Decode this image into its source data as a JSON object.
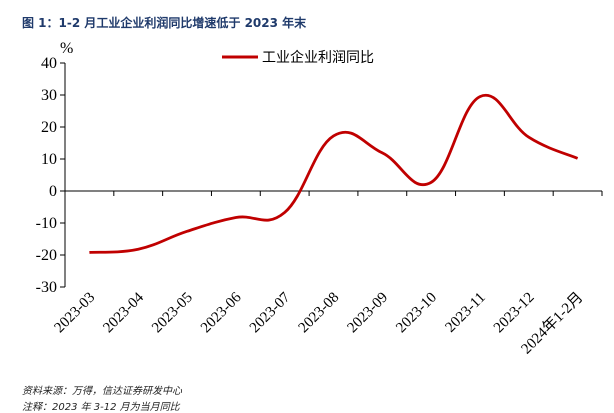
{
  "figure": {
    "title": "图 1：1-2 月工业企业利润同比增速低于 2023 年末",
    "source": "资料来源：万得，信达证券研发中心",
    "note": "注释：2023 年 3-12 月为当月同比"
  },
  "chart_data": {
    "type": "line",
    "title": "",
    "xlabel": "",
    "ylabel": "%",
    "ylim": [
      -30,
      40
    ],
    "yticks": [
      -30,
      -20,
      -10,
      0,
      10,
      20,
      30,
      40
    ],
    "categories": [
      "2023-03",
      "2023-04",
      "2023-05",
      "2023-06",
      "2023-07",
      "2023-08",
      "2023-09",
      "2023-10",
      "2023-11",
      "2023-12",
      "2024年1-2月"
    ],
    "series": [
      {
        "name": "工业企业利润同比",
        "color": "#c00000",
        "values": [
          -19.2,
          -18.2,
          -12.6,
          -8.3,
          -6.7,
          17.2,
          11.9,
          2.7,
          29.5,
          16.8,
          10.2
        ]
      }
    ],
    "legend": "top-center",
    "grid": false
  }
}
